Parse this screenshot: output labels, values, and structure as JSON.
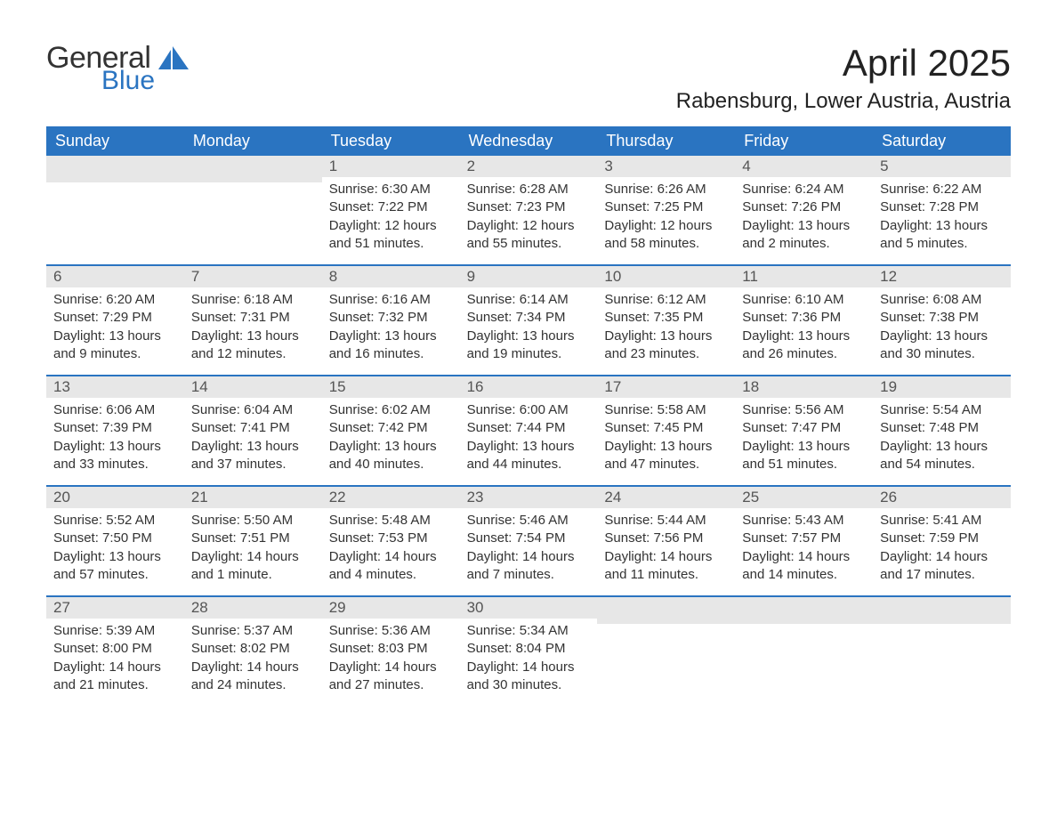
{
  "brand": {
    "word1": "General",
    "word2": "Blue",
    "word1_color": "#333333",
    "word2_color": "#2a74c1",
    "mark_color": "#2a74c1"
  },
  "title": "April 2025",
  "location": "Rabensburg, Lower Austria, Austria",
  "colors": {
    "header_bg": "#2a74c1",
    "header_text": "#ffffff",
    "daynum_bg": "#e7e7e7",
    "daynum_text": "#555555",
    "divider": "#2a74c1",
    "body_text": "#333333",
    "page_bg": "#ffffff"
  },
  "weekdays": [
    "Sunday",
    "Monday",
    "Tuesday",
    "Wednesday",
    "Thursday",
    "Friday",
    "Saturday"
  ],
  "weeks": [
    [
      null,
      null,
      {
        "n": "1",
        "sunrise": "6:30 AM",
        "sunset": "7:22 PM",
        "daylight": "12 hours and 51 minutes."
      },
      {
        "n": "2",
        "sunrise": "6:28 AM",
        "sunset": "7:23 PM",
        "daylight": "12 hours and 55 minutes."
      },
      {
        "n": "3",
        "sunrise": "6:26 AM",
        "sunset": "7:25 PM",
        "daylight": "12 hours and 58 minutes."
      },
      {
        "n": "4",
        "sunrise": "6:24 AM",
        "sunset": "7:26 PM",
        "daylight": "13 hours and 2 minutes."
      },
      {
        "n": "5",
        "sunrise": "6:22 AM",
        "sunset": "7:28 PM",
        "daylight": "13 hours and 5 minutes."
      }
    ],
    [
      {
        "n": "6",
        "sunrise": "6:20 AM",
        "sunset": "7:29 PM",
        "daylight": "13 hours and 9 minutes."
      },
      {
        "n": "7",
        "sunrise": "6:18 AM",
        "sunset": "7:31 PM",
        "daylight": "13 hours and 12 minutes."
      },
      {
        "n": "8",
        "sunrise": "6:16 AM",
        "sunset": "7:32 PM",
        "daylight": "13 hours and 16 minutes."
      },
      {
        "n": "9",
        "sunrise": "6:14 AM",
        "sunset": "7:34 PM",
        "daylight": "13 hours and 19 minutes."
      },
      {
        "n": "10",
        "sunrise": "6:12 AM",
        "sunset": "7:35 PM",
        "daylight": "13 hours and 23 minutes."
      },
      {
        "n": "11",
        "sunrise": "6:10 AM",
        "sunset": "7:36 PM",
        "daylight": "13 hours and 26 minutes."
      },
      {
        "n": "12",
        "sunrise": "6:08 AM",
        "sunset": "7:38 PM",
        "daylight": "13 hours and 30 minutes."
      }
    ],
    [
      {
        "n": "13",
        "sunrise": "6:06 AM",
        "sunset": "7:39 PM",
        "daylight": "13 hours and 33 minutes."
      },
      {
        "n": "14",
        "sunrise": "6:04 AM",
        "sunset": "7:41 PM",
        "daylight": "13 hours and 37 minutes."
      },
      {
        "n": "15",
        "sunrise": "6:02 AM",
        "sunset": "7:42 PM",
        "daylight": "13 hours and 40 minutes."
      },
      {
        "n": "16",
        "sunrise": "6:00 AM",
        "sunset": "7:44 PM",
        "daylight": "13 hours and 44 minutes."
      },
      {
        "n": "17",
        "sunrise": "5:58 AM",
        "sunset": "7:45 PM",
        "daylight": "13 hours and 47 minutes."
      },
      {
        "n": "18",
        "sunrise": "5:56 AM",
        "sunset": "7:47 PM",
        "daylight": "13 hours and 51 minutes."
      },
      {
        "n": "19",
        "sunrise": "5:54 AM",
        "sunset": "7:48 PM",
        "daylight": "13 hours and 54 minutes."
      }
    ],
    [
      {
        "n": "20",
        "sunrise": "5:52 AM",
        "sunset": "7:50 PM",
        "daylight": "13 hours and 57 minutes."
      },
      {
        "n": "21",
        "sunrise": "5:50 AM",
        "sunset": "7:51 PM",
        "daylight": "14 hours and 1 minute."
      },
      {
        "n": "22",
        "sunrise": "5:48 AM",
        "sunset": "7:53 PM",
        "daylight": "14 hours and 4 minutes."
      },
      {
        "n": "23",
        "sunrise": "5:46 AM",
        "sunset": "7:54 PM",
        "daylight": "14 hours and 7 minutes."
      },
      {
        "n": "24",
        "sunrise": "5:44 AM",
        "sunset": "7:56 PM",
        "daylight": "14 hours and 11 minutes."
      },
      {
        "n": "25",
        "sunrise": "5:43 AM",
        "sunset": "7:57 PM",
        "daylight": "14 hours and 14 minutes."
      },
      {
        "n": "26",
        "sunrise": "5:41 AM",
        "sunset": "7:59 PM",
        "daylight": "14 hours and 17 minutes."
      }
    ],
    [
      {
        "n": "27",
        "sunrise": "5:39 AM",
        "sunset": "8:00 PM",
        "daylight": "14 hours and 21 minutes."
      },
      {
        "n": "28",
        "sunrise": "5:37 AM",
        "sunset": "8:02 PM",
        "daylight": "14 hours and 24 minutes."
      },
      {
        "n": "29",
        "sunrise": "5:36 AM",
        "sunset": "8:03 PM",
        "daylight": "14 hours and 27 minutes."
      },
      {
        "n": "30",
        "sunrise": "5:34 AM",
        "sunset": "8:04 PM",
        "daylight": "14 hours and 30 minutes."
      },
      null,
      null,
      null
    ]
  ],
  "labels": {
    "sunrise": "Sunrise: ",
    "sunset": "Sunset: ",
    "daylight": "Daylight: "
  },
  "typography": {
    "title_fontsize_pt": 32,
    "location_fontsize_pt": 18,
    "weekday_fontsize_pt": 14,
    "daynum_fontsize_pt": 13,
    "body_fontsize_pt": 11
  }
}
